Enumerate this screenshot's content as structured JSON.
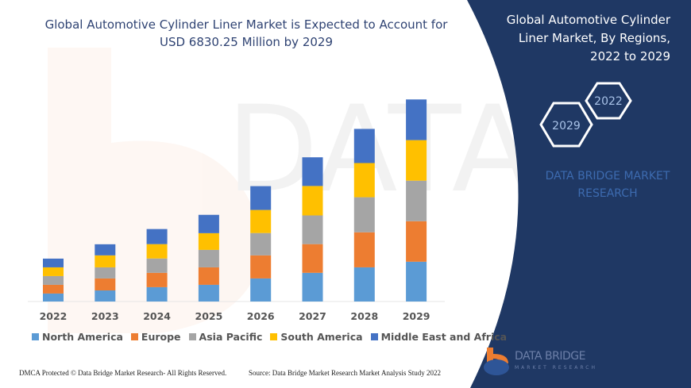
{
  "header": {
    "title_line1": "Global Automotive Cylinder Liner Market is Expected to Account for",
    "title_line2": "USD 6830.25 Million by 2029"
  },
  "side_panel": {
    "title_line1": "Global Automotive Cylinder",
    "title_line2": "Liner Market, By Regions,",
    "title_line3": "2022 to 2029",
    "hex_start": "2022",
    "hex_end": "2029",
    "brand_line1": "DATA BRIDGE MARKET",
    "brand_line2": "RESEARCH",
    "panel_color": "#1f3864"
  },
  "logo": {
    "name": "DATA BRIDGE",
    "sub": "MARKET RESEARCH"
  },
  "footer": {
    "copyright": "DMCA Protected © Data Bridge Market Research- All Rights Reserved.",
    "source": "Source: Data Bridge Market Research Market Analysis Study 2022"
  },
  "chart_data": {
    "type": "bar",
    "stacked": true,
    "title": "Global Automotive Cylinder Liner Market is Expected to Account for USD 6830.25 Million by 2029",
    "xlabel": "",
    "ylabel": "",
    "ylim": [
      0,
      7000
    ],
    "grid": false,
    "legend_position": "bottom",
    "categories": [
      "2022",
      "2023",
      "2024",
      "2025",
      "2026",
      "2027",
      "2028",
      "2029"
    ],
    "series": [
      {
        "name": "North America",
        "color": "#5b9bd5",
        "values": [
          270,
          375,
          485,
          565,
          780,
          970,
          1155,
          1345
        ]
      },
      {
        "name": "Europe",
        "color": "#ed7d31",
        "values": [
          295,
          405,
          485,
          590,
          780,
          970,
          1185,
          1370
        ]
      },
      {
        "name": "Asia Pacific",
        "color": "#a5a5a5",
        "values": [
          295,
          375,
          485,
          590,
          755,
          970,
          1185,
          1370
        ]
      },
      {
        "name": "South America",
        "color": "#ffc000",
        "values": [
          295,
          405,
          485,
          565,
          780,
          995,
          1155,
          1370
        ]
      },
      {
        "name": "Middle East and Africa",
        "color": "#4472c4",
        "values": [
          295,
          375,
          510,
          620,
          805,
          970,
          1155,
          1375
        ]
      }
    ]
  }
}
